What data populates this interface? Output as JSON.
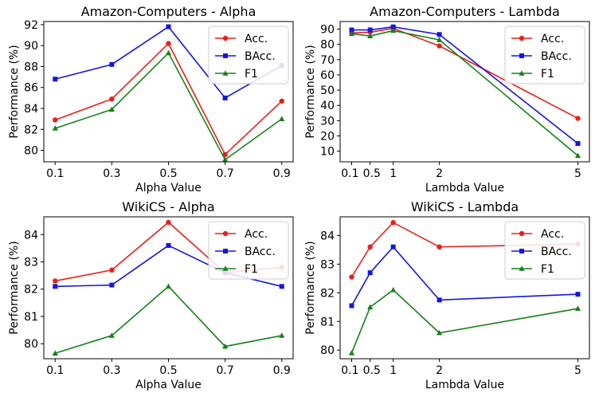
{
  "colors": {
    "acc": "#e8201a",
    "bacc": "#1515e0",
    "f1": "#16801a"
  },
  "chart_data": [
    {
      "type": "line",
      "title": "Amazon-Computers - Alpha",
      "xlabel": "Alpha Value",
      "ylabel": "Performance (%)",
      "x": [
        0.1,
        0.3,
        0.5,
        0.7,
        0.9
      ],
      "xlim": [
        0.06,
        0.94
      ],
      "ylim": [
        78.9,
        92.3
      ],
      "yticks": [
        80,
        82,
        84,
        86,
        88,
        90,
        92
      ],
      "legend": "top-right",
      "series": [
        {
          "name": "Acc.",
          "marker": "circle",
          "values": [
            82.9,
            84.9,
            90.2,
            79.6,
            84.7
          ]
        },
        {
          "name": "BAcc.",
          "marker": "square",
          "values": [
            86.8,
            88.2,
            91.8,
            85.0,
            88.1
          ]
        },
        {
          "name": "F1",
          "marker": "triangle",
          "values": [
            82.1,
            83.9,
            89.3,
            79.1,
            83.0
          ]
        }
      ]
    },
    {
      "type": "line",
      "title": "Amazon-Computers - Lambda",
      "xlabel": "Lambda Value",
      "ylabel": "Performance (%)",
      "x": [
        0.1,
        0.5,
        1,
        2,
        5
      ],
      "xtick_labels": [
        "0.1",
        "0.5",
        "1",
        "2",
        "5"
      ],
      "xlim": [
        -0.15,
        5.25
      ],
      "ylim": [
        3,
        95
      ],
      "yticks": [
        10,
        20,
        30,
        40,
        50,
        60,
        70,
        80,
        90
      ],
      "legend": "top-right",
      "series": [
        {
          "name": "Acc.",
          "marker": "circle",
          "values": [
            87.5,
            88.0,
            90.5,
            79.0,
            31.5
          ]
        },
        {
          "name": "BAcc.",
          "marker": "square",
          "values": [
            89.5,
            89.5,
            91.5,
            86.5,
            15.0
          ]
        },
        {
          "name": "F1",
          "marker": "triangle",
          "values": [
            87.0,
            85.5,
            89.0,
            83.0,
            7.0
          ]
        }
      ]
    },
    {
      "type": "line",
      "title": "WikiCS - Alpha",
      "xlabel": "Alpha Value",
      "ylabel": "Performance (%)",
      "x": [
        0.1,
        0.3,
        0.5,
        0.7,
        0.9
      ],
      "xlim": [
        0.06,
        0.94
      ],
      "ylim": [
        79.45,
        84.65
      ],
      "yticks": [
        80,
        81,
        82,
        83,
        84
      ],
      "legend": "top-right",
      "series": [
        {
          "name": "Acc.",
          "marker": "circle",
          "values": [
            82.3,
            82.7,
            84.45,
            82.6,
            82.8
          ]
        },
        {
          "name": "BAcc.",
          "marker": "square",
          "values": [
            82.1,
            82.15,
            83.6,
            82.6,
            82.1
          ]
        },
        {
          "name": "F1",
          "marker": "triangle",
          "values": [
            79.65,
            80.3,
            82.1,
            79.9,
            80.3
          ]
        }
      ]
    },
    {
      "type": "line",
      "title": "WikiCS - Lambda",
      "xlabel": "Lambda Value",
      "ylabel": "Performance (%)",
      "x": [
        0.1,
        0.5,
        1,
        2,
        5
      ],
      "xtick_labels": [
        "0.1",
        "0.5",
        "1",
        "2",
        "5"
      ],
      "xlim": [
        -0.15,
        5.25
      ],
      "ylim": [
        79.7,
        84.65
      ],
      "yticks": [
        80,
        81,
        82,
        83,
        84
      ],
      "legend": "top-right",
      "series": [
        {
          "name": "Acc.",
          "marker": "circle",
          "values": [
            82.55,
            83.6,
            84.45,
            83.6,
            83.7
          ]
        },
        {
          "name": "BAcc.",
          "marker": "square",
          "values": [
            81.55,
            82.7,
            83.6,
            81.75,
            81.95
          ]
        },
        {
          "name": "F1",
          "marker": "triangle",
          "values": [
            79.9,
            81.5,
            82.1,
            80.6,
            81.45
          ]
        }
      ]
    }
  ]
}
